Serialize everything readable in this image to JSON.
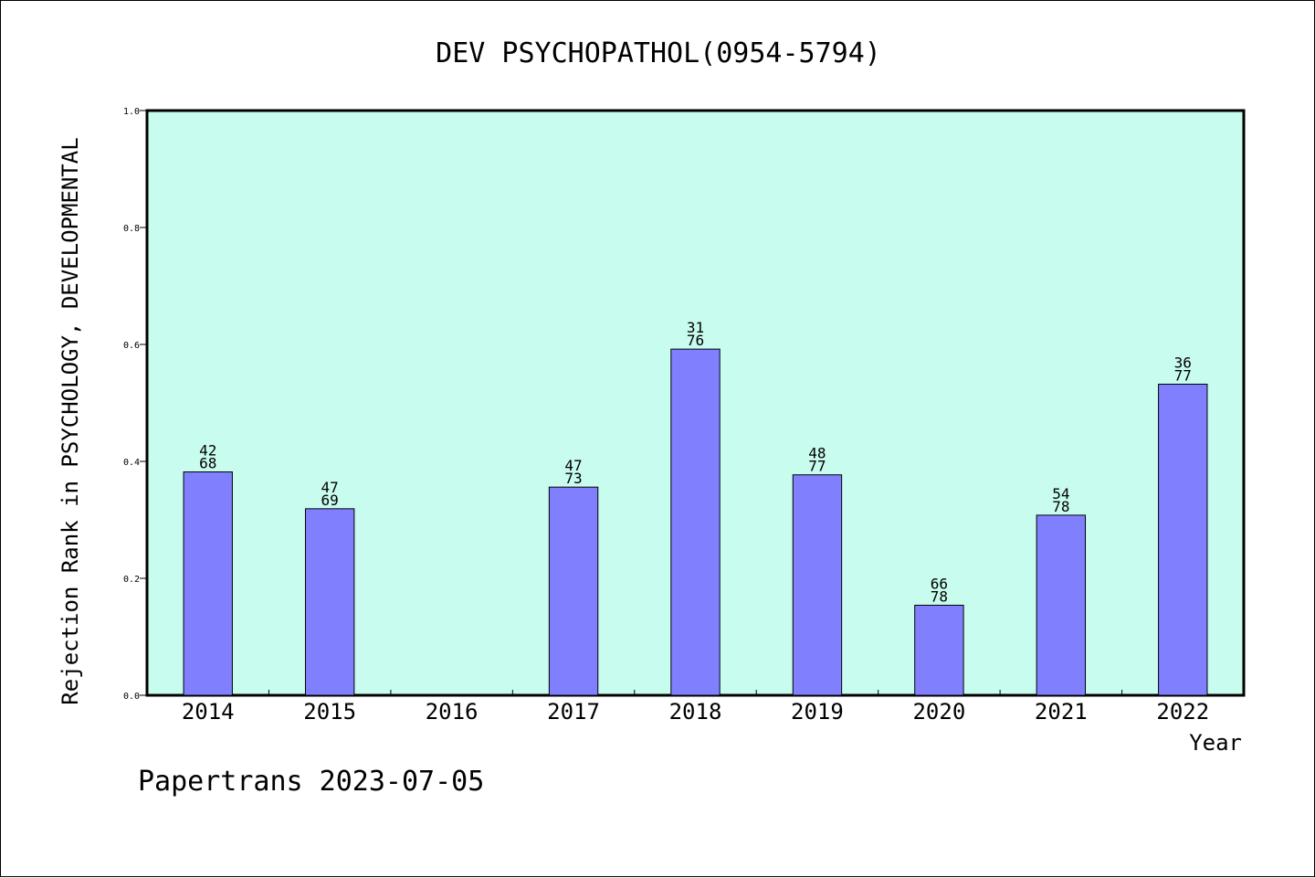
{
  "chart_data": {
    "type": "bar",
    "title": "DEV PSYCHOPATHOL(0954-5794)",
    "xlabel": "Year",
    "ylabel": "Rejection Rank in PSYCHOLOGY, DEVELOPMENTAL",
    "ylim": [
      0,
      1.0
    ],
    "yticks": [
      "0.0",
      "0.2",
      "0.4",
      "0.6",
      "0.8",
      "1.0"
    ],
    "categories": [
      "2014",
      "2015",
      "2016",
      "2017",
      "2018",
      "2019",
      "2020",
      "2021",
      "2022"
    ],
    "values": [
      0.382,
      0.319,
      null,
      0.356,
      0.592,
      0.377,
      0.154,
      0.308,
      0.532
    ],
    "rank_labels": [
      [
        "42",
        "68"
      ],
      [
        "47",
        "69"
      ],
      null,
      [
        "47",
        "73"
      ],
      [
        "31",
        "76"
      ],
      [
        "48",
        "77"
      ],
      [
        "66",
        "78"
      ],
      [
        "54",
        "78"
      ],
      [
        "36",
        "77"
      ]
    ],
    "grid": false,
    "colors": {
      "plot_background": "#c8fcee",
      "bar_fill": "#8080ff",
      "bar_stroke": "#000000"
    }
  },
  "footer": "Papertrans 2023-07-05"
}
